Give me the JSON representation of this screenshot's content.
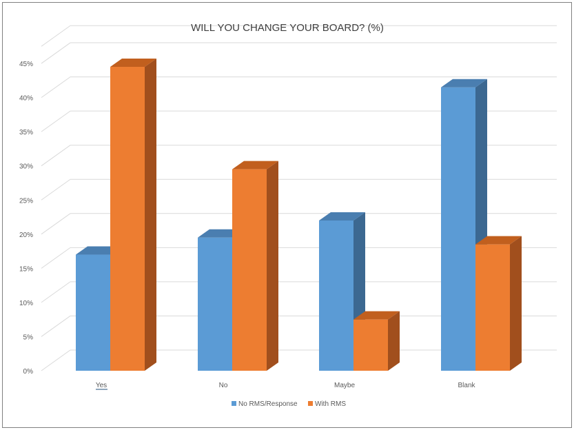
{
  "chart_data": {
    "type": "bar",
    "title": "WILL YOU CHANGE YOUR BOARD? (%)",
    "categories": [
      "Yes",
      "No",
      "Maybe",
      "Blank"
    ],
    "series": [
      {
        "name": "No RMS/Response",
        "values": [
          17,
          19.5,
          22,
          41.5
        ],
        "color": "#5b9bd5"
      },
      {
        "name": "With RMS",
        "values": [
          44.5,
          29.5,
          7.5,
          18.5
        ],
        "color": "#ed7d31"
      }
    ],
    "yticks": [
      "0%",
      "5%",
      "10%",
      "15%",
      "20%",
      "25%",
      "30%",
      "35%",
      "40%",
      "45%"
    ],
    "ylim": [
      0,
      47.5
    ],
    "legend_position": "bottom",
    "grid": true,
    "style": "3d-clustered-column"
  }
}
